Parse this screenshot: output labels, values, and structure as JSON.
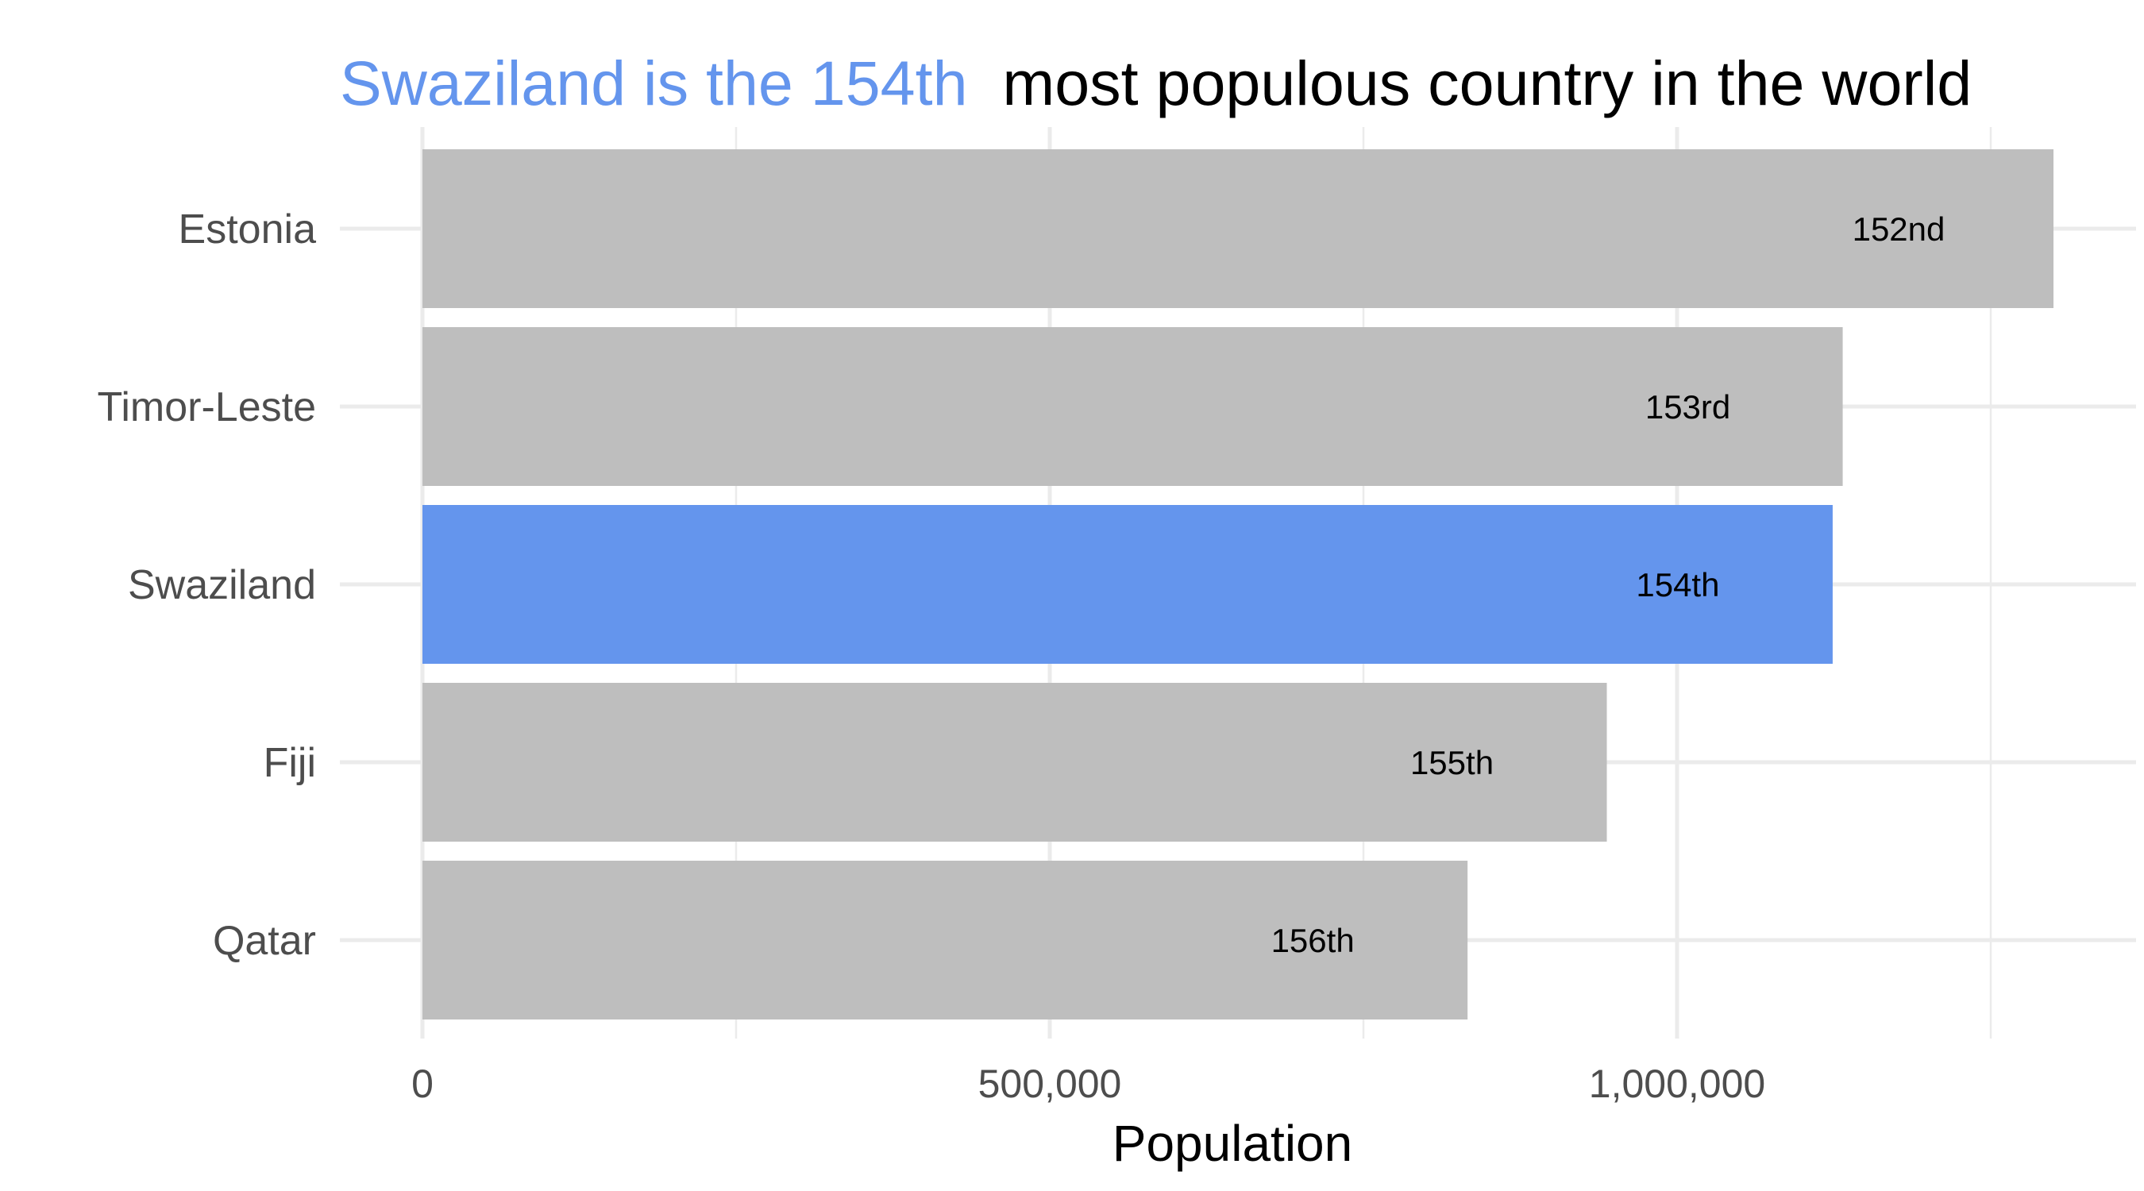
{
  "chart_data": {
    "type": "bar",
    "orientation": "horizontal",
    "title": {
      "highlight": "Swaziland is the 154th",
      "rest": " most populous country in the world"
    },
    "xlabel": "Population",
    "ylabel": "",
    "xlim": [
      0,
      1370000
    ],
    "x_ticks": [
      0,
      500000,
      1000000
    ],
    "x_tick_labels": [
      "0",
      "500,000",
      "1,000,000"
    ],
    "x_minor_ticks": [
      250000,
      750000,
      1250000
    ],
    "grid": true,
    "legend": "none",
    "categories": [
      "Estonia",
      "Timor-Leste",
      "Swaziland",
      "Fiji",
      "Qatar"
    ],
    "values": [
      1300000,
      1132000,
      1124000,
      944000,
      833000
    ],
    "bar_labels": [
      "152nd",
      "153rd",
      "154th",
      "155th",
      "156th"
    ],
    "highlight_category": "Swaziland",
    "colors": {
      "highlight": "#6495ED",
      "default": "#BEBEBE"
    }
  }
}
